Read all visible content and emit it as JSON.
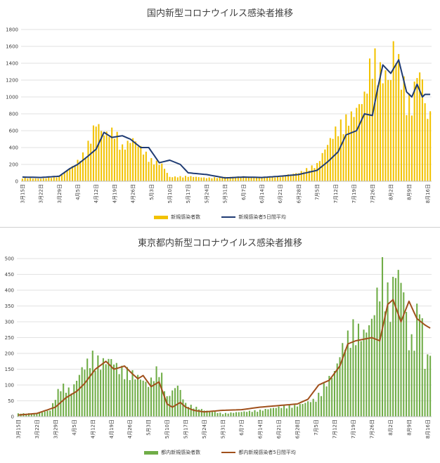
{
  "chart_data": [
    {
      "type": "bar",
      "title": "国内新型コロナウイルス感染者推移",
      "ylim": [
        0,
        1800
      ],
      "yticks": [
        0,
        200,
        400,
        600,
        800,
        1000,
        1200,
        1400,
        1600,
        1800
      ],
      "grid": true,
      "legend_position": "bottom",
      "x_tick_labels": [
        "3月15日",
        "3月22日",
        "3月29日",
        "4月5日",
        "4月12日",
        "4月19日",
        "4月26日",
        "5月3日",
        "5月10日",
        "5月17日",
        "5月24日",
        "5月31日",
        "6月7日",
        "6月14日",
        "6月21日",
        "6月28日",
        "7月5日",
        "7月12日",
        "7月19日",
        "7月26日",
        "8月2日",
        "8月9日",
        "8月16日"
      ],
      "colors": {
        "bar": "#f2c200",
        "line": "#1f3b73"
      },
      "series": [
        {
          "name": "新規感染者数",
          "kind": "bar",
          "anchor_days": [
            0,
            7,
            14,
            20,
            24,
            28,
            31,
            35,
            38,
            42,
            49,
            53,
            56,
            63,
            70,
            77,
            84,
            91,
            98,
            105,
            112,
            115,
            119,
            122,
            126,
            130,
            133,
            136,
            140,
            141,
            143,
            146,
            148,
            150,
            152,
            154,
            155
          ],
          "anchor_values": [
            40,
            30,
            60,
            200,
            350,
            700,
            550,
            600,
            400,
            500,
            250,
            200,
            50,
            60,
            40,
            50,
            55,
            40,
            60,
            100,
            200,
            380,
            600,
            700,
            800,
            1000,
            1500,
            1300,
            1200,
            1600,
            1400,
            1000,
            900,
            1300,
            1200,
            700,
            920
          ]
        },
        {
          "name": "新規感染者5日間平均",
          "kind": "line",
          "anchor_days": [
            0,
            7,
            14,
            18,
            21,
            25,
            28,
            31,
            34,
            38,
            41,
            45,
            48,
            52,
            56,
            60,
            63,
            70,
            77,
            84,
            91,
            98,
            105,
            112,
            116,
            120,
            123,
            127,
            130,
            133,
            135,
            137,
            140,
            143,
            146,
            148,
            150,
            152,
            153
          ],
          "anchor_values": [
            50,
            45,
            60,
            150,
            200,
            300,
            380,
            580,
            520,
            540,
            500,
            400,
            400,
            220,
            250,
            200,
            100,
            80,
            40,
            50,
            45,
            60,
            80,
            130,
            230,
            350,
            550,
            600,
            800,
            780,
            1100,
            1380,
            1280,
            1440,
            1060,
            1000,
            1150,
            1000,
            1030
          ]
        }
      ]
    },
    {
      "type": "bar",
      "title": "東京都内新型コロナウイルス感染者推移",
      "ylim": [
        0,
        500
      ],
      "yticks": [
        0,
        50,
        100,
        150,
        200,
        250,
        300,
        350,
        400,
        450,
        500
      ],
      "grid": true,
      "legend_position": "bottom",
      "x_tick_labels": [
        "3月15日",
        "3月22日",
        "3月29日",
        "4月5日",
        "4月12日",
        "4月19日",
        "4月26日",
        "5月3日",
        "5月10日",
        "5月17日",
        "5月24日",
        "5月31日",
        "6月7日",
        "6月14日",
        "6月21日",
        "6月28日",
        "7月5日",
        "7月12日",
        "7月19日",
        "7月26日",
        "8月2日",
        "8月9日",
        "8月16日"
      ],
      "colors": {
        "bar": "#70ad47",
        "line": "#a0501c"
      },
      "series": [
        {
          "name": "都内新規感染者数",
          "kind": "bar",
          "anchor_days": [
            0,
            7,
            12,
            16,
            20,
            24,
            28,
            31,
            35,
            38,
            42,
            46,
            49,
            53,
            56,
            60,
            63,
            70,
            77,
            84,
            91,
            98,
            105,
            112,
            116,
            119,
            122,
            126,
            130,
            133,
            137,
            140,
            142,
            145,
            147,
            149,
            151,
            153,
            155
          ],
          "anchor_values": [
            10,
            10,
            20,
            100,
            80,
            150,
            190,
            170,
            180,
            150,
            140,
            120,
            100,
            160,
            60,
            100,
            40,
            20,
            10,
            15,
            20,
            30,
            35,
            55,
            110,
            140,
            220,
            280,
            260,
            300,
            460,
            350,
            470,
            400,
            230,
            250,
            400,
            170,
            200
          ]
        },
        {
          "name": "都内新規感染者5日間平均",
          "kind": "line",
          "anchor_days": [
            0,
            7,
            14,
            18,
            22,
            25,
            29,
            33,
            36,
            40,
            43,
            45,
            47,
            50,
            53,
            56,
            58,
            61,
            63,
            66,
            70,
            77,
            84,
            91,
            98,
            105,
            109,
            113,
            117,
            121,
            124,
            127,
            130,
            133,
            136,
            139,
            141,
            144,
            147,
            150,
            153,
            155
          ],
          "anchor_values": [
            5,
            10,
            30,
            60,
            80,
            105,
            150,
            175,
            150,
            160,
            135,
            120,
            130,
            95,
            110,
            40,
            30,
            45,
            30,
            20,
            15,
            20,
            22,
            30,
            35,
            40,
            55,
            100,
            115,
            160,
            230,
            240,
            245,
            250,
            240,
            355,
            370,
            300,
            365,
            310,
            290,
            280
          ]
        }
      ]
    }
  ]
}
